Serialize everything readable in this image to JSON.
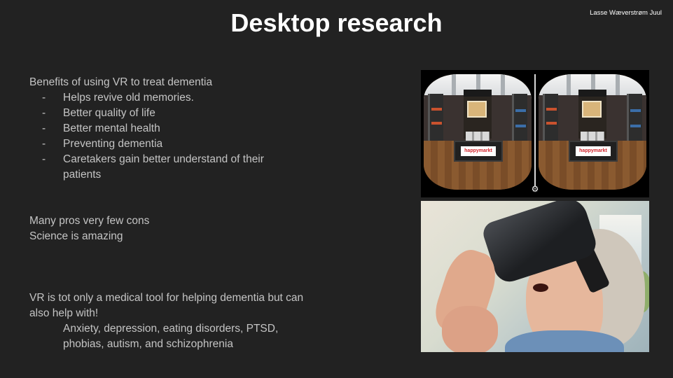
{
  "slide": {
    "title": "Desktop research",
    "author": "Lasse Wæverstrøm Juul"
  },
  "benefits": {
    "heading": "Benefits of using VR to treat dementia",
    "items": [
      "Helps revive old memories.",
      "Better quality of life",
      "Better mental health",
      "Preventing dementia",
      "Caretakers gain better understand of their patients"
    ]
  },
  "summary": {
    "line1": "Many pros very few cons",
    "line2": "Science is amazing"
  },
  "other_uses": {
    "intro": "VR is tot only a medical tool for helping dementia but can also help with!",
    "list": "Anxiety, depression, eating disorders, PTSD, phobias, autism, and schizophrenia"
  },
  "vr_image": {
    "store_logo": "happymarkt",
    "settings_icon": "gear-icon"
  }
}
